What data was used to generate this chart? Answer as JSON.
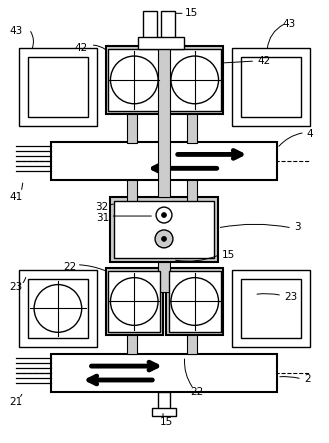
{
  "fig_width": 3.29,
  "fig_height": 4.43,
  "dpi": 100,
  "bg_color": "#ffffff",
  "lc": "#000000",
  "lgc": "#cccccc",
  "arrow_lw": 3.5,
  "arrow_scale": 14
}
